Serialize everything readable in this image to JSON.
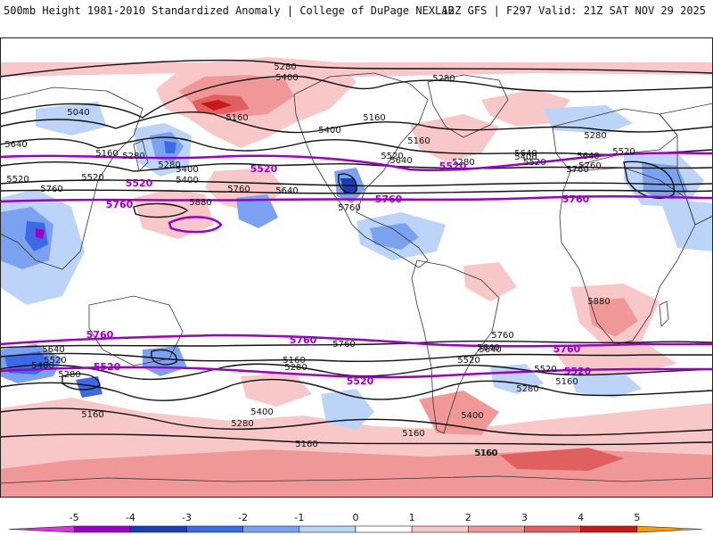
{
  "header": {
    "left_title": "500mb Height 1981-2010 Standardized Anomaly | College of DuPage NEXLAB",
    "right_title": "12Z GFS | F297 Valid: 21Z SAT NOV 29 2025"
  },
  "colors": {
    "ref_contour": "#9a00c8",
    "height_contour": "#111111",
    "coast": "#333333"
  },
  "contour_labels": {
    "height": [
      "5280",
      "5400",
      "5280",
      "5040",
      "5520",
      "5160",
      "5400",
      "5280",
      "5640",
      "5520",
      "5160",
      "5280",
      "5160",
      "5400",
      "5520",
      "5760",
      "5640",
      "5880",
      "5760",
      "5160",
      "5400",
      "5280",
      "5520",
      "5640",
      "5760",
      "5400",
      "5280",
      "5520",
      "5640",
      "5760",
      "5880",
      "5640",
      "5520",
      "5400",
      "5280",
      "5160",
      "5760",
      "5640",
      "5520",
      "5280",
      "5160",
      "5400",
      "5280",
      "5160",
      "5160",
      "5400",
      "5160",
      "5760",
      "5640",
      "5520",
      "5280",
      "5160",
      "5160",
      "5760",
      "5640"
    ],
    "reference": [
      "5520",
      "5760",
      "5520",
      "5760",
      "5760",
      "5760",
      "5760",
      "5520",
      "5520",
      "5520",
      "5760",
      "5520"
    ]
  },
  "colorbar": {
    "labels": [
      "-5",
      "-4",
      "-3",
      "-2",
      "-1",
      "0",
      "1",
      "2",
      "3",
      "4",
      "5"
    ],
    "colors": [
      "#e030e0",
      "#9a00c8",
      "#1a3cb4",
      "#3c6ae6",
      "#7aa2f0",
      "#bcd4f8",
      "#ffffff",
      "#f8c8c8",
      "#f09898",
      "#e06060",
      "#c81818",
      "#ff9a00"
    ]
  }
}
